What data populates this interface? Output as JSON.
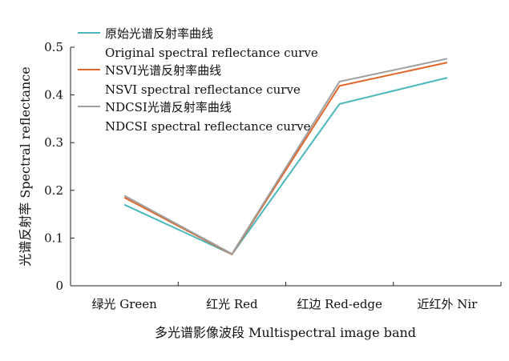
{
  "chart_data": {
    "type": "line",
    "categories": [
      "绿光 Green",
      "红光 Red",
      "红边 Red-edge",
      "近红外 Nir"
    ],
    "series": [
      {
        "name": "原始光谱反射率曲线",
        "name_en": "Original spectral reflectance curve",
        "color": "#4bb8bd",
        "values": [
          0.17,
          0.066,
          0.381,
          0.436
        ]
      },
      {
        "name": "NSVI光谱反射率曲线",
        "name_en": "NSVI spectral reflectance curve",
        "color": "#e0662a",
        "values": [
          0.185,
          0.066,
          0.419,
          0.468
        ]
      },
      {
        "name": "NDCSI光谱反射率曲线",
        "name_en": "NDCSI spectral reflectance curve",
        "color": "#a0a0a0",
        "values": [
          0.189,
          0.067,
          0.428,
          0.476
        ]
      }
    ],
    "xlabel": "多光谱影像波段 Multispectral image band",
    "ylabel": "光谱反射率 Spectral reflectance",
    "ylim": [
      0,
      0.5
    ],
    "yticks": [
      "0",
      "0.1",
      "0.2",
      "0.3",
      "0.4",
      "0.5"
    ],
    "legend_position": "top-left",
    "grid": false
  }
}
